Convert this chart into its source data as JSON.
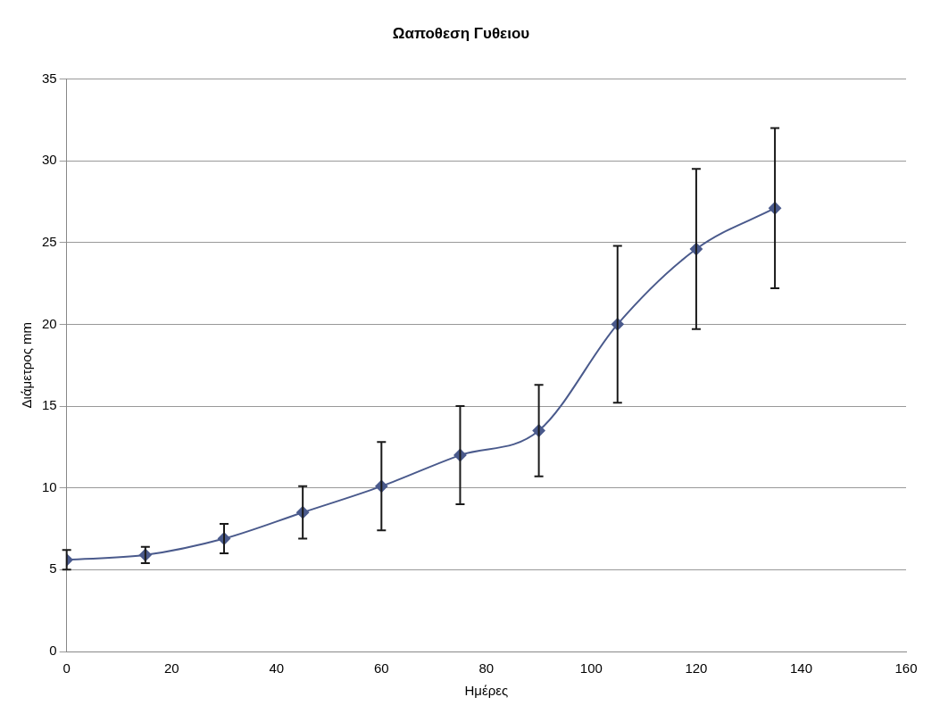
{
  "chart_data": {
    "type": "line",
    "title": "Ωαποθεση Γυθειου",
    "xlabel": "Ημέρες",
    "ylabel": "Διάμετρος mm",
    "x": [
      0,
      15,
      30,
      45,
      60,
      75,
      90,
      105,
      120,
      135
    ],
    "series": [
      {
        "color": "#4a5a8c",
        "values": [
          5.6,
          5.9,
          6.9,
          8.5,
          10.1,
          12.0,
          13.5,
          20.0,
          24.6,
          27.1
        ],
        "errors": [
          0.6,
          0.5,
          0.9,
          1.6,
          2.7,
          3.0,
          2.8,
          4.8,
          4.9,
          4.9
        ]
      }
    ],
    "xlim": [
      0,
      160
    ],
    "xticks": [
      0,
      20,
      40,
      60,
      80,
      100,
      120,
      140,
      160
    ],
    "ylim": [
      0,
      35
    ],
    "yticks": [
      0,
      5,
      10,
      15,
      20,
      25,
      30,
      35
    ],
    "grid": "y",
    "legend": false,
    "marker": "diamond",
    "line_style": "solid"
  }
}
